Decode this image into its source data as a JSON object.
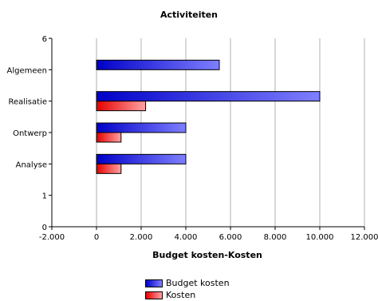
{
  "chart_data": {
    "type": "bar",
    "orientation": "horizontal",
    "title": "Activiteiten",
    "xlabel": "Budget kosten-Kosten",
    "ylabel": "",
    "categories": [
      "Algemeen",
      "Realisatie",
      "Ontwerp",
      "Analyse"
    ],
    "category_positions": [
      5,
      4,
      3,
      2
    ],
    "y_ticks": [
      "0",
      "1",
      "2",
      "3",
      "4",
      "5",
      "6"
    ],
    "x_ticks": [
      "-2.000",
      "0",
      "2.000",
      "4.000",
      "6.000",
      "8.000",
      "10.000",
      "12.000"
    ],
    "xlim": [
      -2000,
      12000
    ],
    "ylim": [
      0,
      6
    ],
    "grid": true,
    "legend_position": "bottom",
    "series": [
      {
        "name": "Budget kosten",
        "values": [
          5500,
          10000,
          4000,
          4000
        ],
        "color": "#1f1fff"
      },
      {
        "name": "Kosten",
        "values": [
          0,
          2200,
          1100,
          1100
        ],
        "color": "#ff2b2b"
      }
    ]
  }
}
